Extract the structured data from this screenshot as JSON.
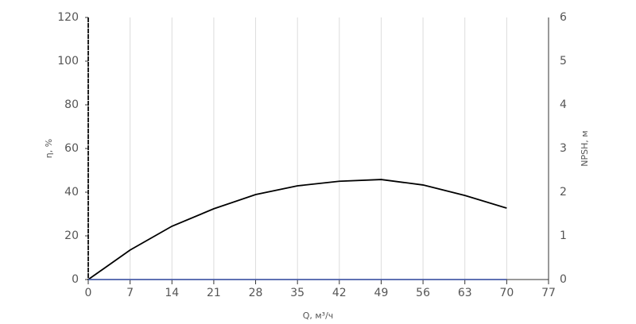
{
  "chart_data": {
    "type": "line",
    "x": [
      0,
      7,
      14,
      21,
      28,
      35,
      42,
      49,
      56,
      63,
      70
    ],
    "series": [
      {
        "color": "#000000",
        "values": [
          0,
          13.5,
          24.4,
          32.4,
          38.9,
          42.9,
          45,
          45.8,
          43.3,
          38.5,
          32.7
        ]
      },
      {
        "color": "#4a5ea8",
        "axis": "y2",
        "values": [
          0,
          0,
          0,
          0,
          0,
          0,
          0,
          0,
          0,
          0,
          0
        ]
      }
    ],
    "xlim": [
      0,
      77
    ],
    "xticks": [
      0,
      7,
      14,
      21,
      28,
      35,
      42,
      49,
      56,
      63,
      70,
      77
    ],
    "ylim": [
      0,
      120
    ],
    "yticks": [
      0,
      20,
      40,
      60,
      80,
      100,
      120
    ],
    "y2lim": [
      0,
      6
    ],
    "y2ticks": [
      0,
      1,
      2,
      3,
      4,
      5,
      6
    ],
    "xlabel": "Q, м³/ч",
    "ylabel": "η, %",
    "y2label": "NPSH, м",
    "grid": true
  }
}
